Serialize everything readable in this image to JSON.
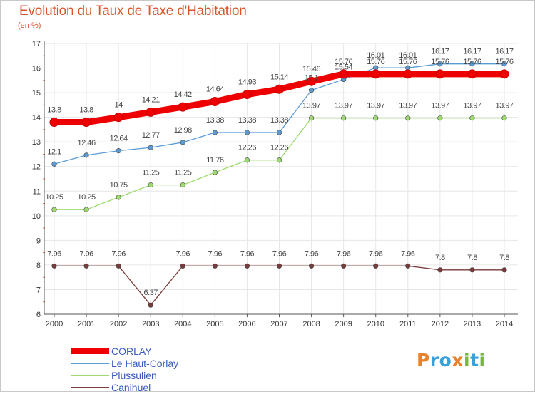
{
  "title": "Evolution du Taux de Taxe d'Habitation",
  "unit": "(en %)",
  "colors": {
    "background": "#ffffff",
    "grid": "#e6e6e6",
    "axis": "#555555",
    "label": "#333333",
    "legend_text": "#3a5bbf",
    "title": "#d9532b"
  },
  "logo": {
    "letters": [
      "P",
      "r",
      "o",
      "x",
      "i",
      "t",
      "i"
    ],
    "colors": [
      "#e8822a",
      "#3aa0d8",
      "#3aa0d8",
      "#e8822a",
      "#7ab83a",
      "#3aa0d8",
      "#7ab83a"
    ]
  },
  "chart_data": {
    "type": "line",
    "x": [
      2000,
      2001,
      2002,
      2003,
      2004,
      2005,
      2006,
      2007,
      2008,
      2009,
      2010,
      2011,
      2012,
      2013,
      2014
    ],
    "ylim": [
      6,
      17
    ],
    "yticks": [
      6,
      7,
      8,
      9,
      10,
      11,
      12,
      13,
      14,
      15,
      16,
      17
    ],
    "grid": true,
    "legend_position": "bottom-left",
    "series": [
      {
        "name": "CORLAY",
        "color": "#ee0000",
        "values": [
          13.8,
          13.8,
          14,
          14.21,
          14.42,
          14.64,
          14.93,
          15.14,
          15.46,
          15.76,
          15.76,
          15.76,
          15.76,
          15.76,
          15.76
        ],
        "labels": [
          "13.8",
          "13.8",
          "14",
          "14.21",
          "14.42",
          "14.64",
          "14.93",
          "15.14",
          "15.46",
          "15.76",
          "15.76",
          "15.76",
          "15.76",
          "15.76",
          "15.76"
        ]
      },
      {
        "name": "Le Haut-Corlay",
        "color": "#5b9bd5",
        "values": [
          12.1,
          12.46,
          12.64,
          12.77,
          12.98,
          13.38,
          13.38,
          13.38,
          15.1,
          15.54,
          16.01,
          16.01,
          16.17,
          16.17,
          16.17
        ],
        "labels": [
          "12.1",
          "12.46",
          "12.64",
          "12.77",
          "12.98",
          "13.38",
          "13.38",
          "13.38",
          "15.1",
          "15.54",
          "16.01",
          "16.01",
          "16.17",
          "16.17",
          "16.17"
        ]
      },
      {
        "name": "Plussulien",
        "color": "#9edb6e",
        "values": [
          10.25,
          10.25,
          10.75,
          11.25,
          11.25,
          11.76,
          12.26,
          12.26,
          13.97,
          13.97,
          13.97,
          13.97,
          13.97,
          13.97,
          13.97
        ],
        "labels": [
          "10.25",
          "10.25",
          "10.75",
          "11.25",
          "11.25",
          "11.76",
          "12.26",
          "12.26",
          "13.97",
          "13.97",
          "13.97",
          "13.97",
          "13.97",
          "13.97",
          "13.97"
        ]
      },
      {
        "name": "Canihuel",
        "color": "#7a3a3a",
        "values": [
          7.96,
          7.96,
          7.96,
          6.37,
          7.96,
          7.96,
          7.96,
          7.96,
          7.96,
          7.96,
          7.96,
          7.96,
          7.8,
          7.8,
          7.8
        ],
        "labels": [
          "7.96",
          "7.96",
          "7.96",
          "6.37",
          "7.96",
          "7.96",
          "7.96",
          "7.96",
          "7.96",
          "7.96",
          "7.96",
          "7.96",
          "7.8",
          "7.8",
          "7.8"
        ]
      }
    ]
  }
}
